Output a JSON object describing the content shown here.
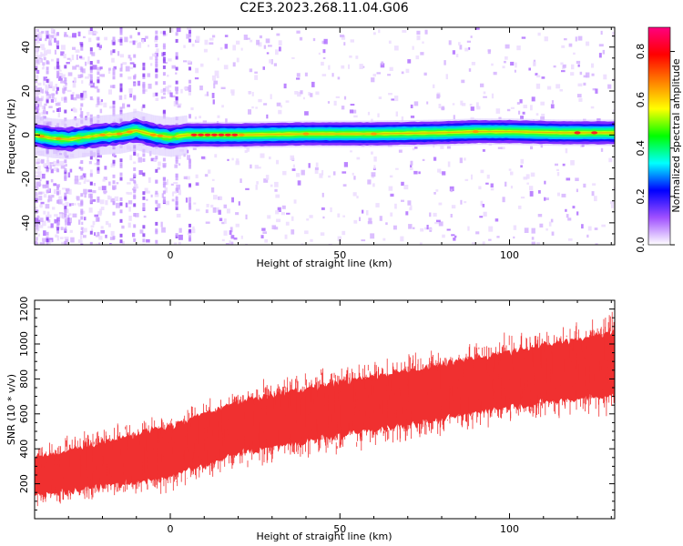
{
  "title": "C2E3.2023.268.11.04.G06",
  "chart_data": [
    {
      "type": "heatmap",
      "xlabel": "Height of straight line (km)",
      "ylabel": "Frequency (Hz)",
      "xlim": [
        -40,
        131
      ],
      "ylim": [
        -50,
        49
      ],
      "x_ticks": [
        0,
        50,
        100
      ],
      "y_ticks": [
        -40,
        -20,
        0,
        20,
        40
      ],
      "band_center_hz": [
        {
          "x": -40,
          "y": 0
        },
        {
          "x": -35,
          "y": -1.5
        },
        {
          "x": -30,
          "y": -2
        },
        {
          "x": -25,
          "y": -1
        },
        {
          "x": -20,
          "y": 0
        },
        {
          "x": -15,
          "y": 0.5
        },
        {
          "x": -10,
          "y": 2
        },
        {
          "x": -5,
          "y": 0
        },
        {
          "x": 0,
          "y": -1
        },
        {
          "x": 5,
          "y": 0
        },
        {
          "x": 20,
          "y": 0
        },
        {
          "x": 40,
          "y": 0.5
        },
        {
          "x": 60,
          "y": 0.5
        },
        {
          "x": 80,
          "y": 1
        },
        {
          "x": 90,
          "y": 1.5
        },
        {
          "x": 100,
          "y": 1.5
        },
        {
          "x": 115,
          "y": 1
        },
        {
          "x": 131,
          "y": 1
        }
      ],
      "colorbar": {
        "label": "Normalized spectral amplitude",
        "range": [
          0,
          0.9
        ],
        "ticks": [
          "0.0",
          "0.2",
          "0.4",
          "0.6",
          "0.8"
        ],
        "stops": [
          "#ffffff",
          "#a050ff",
          "#0000ff",
          "#00ffff",
          "#00ff00",
          "#ffff00",
          "#ff8000",
          "#ff0000",
          "#ff0080"
        ]
      }
    },
    {
      "type": "line",
      "xlabel": "Height of straight line (km)",
      "ylabel": "SNR (10 * v/v)",
      "xlim": [
        -40,
        131
      ],
      "ylim": [
        0,
        1250
      ],
      "x_ticks": [
        0,
        50,
        100
      ],
      "y_ticks": [
        200,
        400,
        600,
        800,
        1000,
        1200
      ],
      "line_color": "#f03030",
      "trend": [
        {
          "x": -40,
          "low": 60,
          "high": 420
        },
        {
          "x": -20,
          "low": 100,
          "high": 520
        },
        {
          "x": 0,
          "low": 150,
          "high": 620
        },
        {
          "x": 20,
          "low": 280,
          "high": 760
        },
        {
          "x": 50,
          "low": 380,
          "high": 880
        },
        {
          "x": 80,
          "low": 470,
          "high": 980
        },
        {
          "x": 100,
          "low": 540,
          "high": 1060
        },
        {
          "x": 131,
          "low": 600,
          "high": 1180
        }
      ]
    }
  ]
}
